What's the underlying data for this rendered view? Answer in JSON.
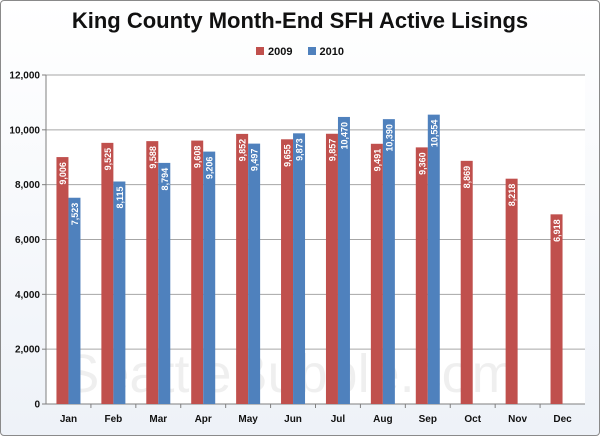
{
  "chart_data": {
    "type": "bar",
    "title": "King County Month-End SFH Active Lisings",
    "watermark": "SeattleBubble.com",
    "categories": [
      "Jan",
      "Feb",
      "Mar",
      "Apr",
      "May",
      "Jun",
      "Jul",
      "Aug",
      "Sep",
      "Oct",
      "Nov",
      "Dec"
    ],
    "series": [
      {
        "name": "2009",
        "color": "#c0504d",
        "values": [
          9006,
          9525,
          9588,
          9608,
          9852,
          9655,
          9857,
          9491,
          9360,
          8869,
          8218,
          6918
        ],
        "labels": [
          "9,006",
          "9,525",
          "9,588",
          "9,608",
          "9,852",
          "9,655",
          "9,857",
          "9,491",
          "9,360",
          "8,869",
          "8,218",
          "6,918"
        ]
      },
      {
        "name": "2010",
        "color": "#4f81bd",
        "values": [
          7523,
          8115,
          8794,
          9206,
          9497,
          9873,
          10470,
          10390,
          10554,
          null,
          null,
          null
        ],
        "labels": [
          "7,523",
          "8,115",
          "8,794",
          "9,206",
          "9,497",
          "9,873",
          "10,470",
          "10,390",
          "10,554",
          null,
          null,
          null
        ]
      }
    ],
    "ylim": [
      0,
      12000
    ],
    "yticks": [
      0,
      2000,
      4000,
      6000,
      8000,
      10000,
      12000
    ],
    "ytick_labels": [
      "0",
      "2,000",
      "4,000",
      "6,000",
      "8,000",
      "10,000",
      "12,000"
    ],
    "grid": true,
    "legend_position": "top"
  }
}
